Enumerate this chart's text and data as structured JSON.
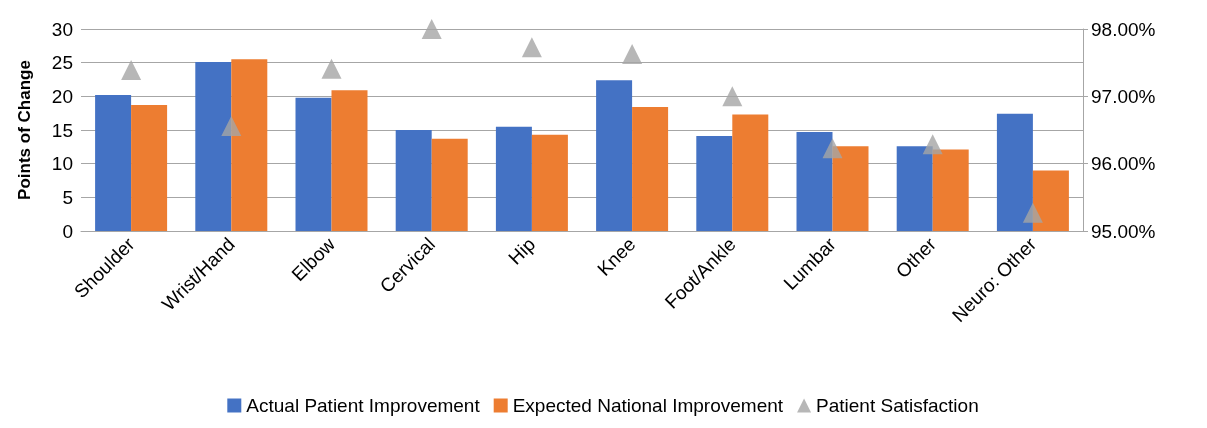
{
  "chart_data": {
    "type": "bar",
    "ylabel": "Points of Change",
    "categories": [
      "Shoulder",
      "Wrist/Hand",
      "Elbow",
      "Cervical",
      "Hip",
      "Knee",
      "Foot/Ankle",
      "Lumbar",
      "Other",
      "Neuro: Other"
    ],
    "series": [
      {
        "name": "Actual Patient Improvement",
        "color": "#4472c4",
        "values": [
          20.2,
          25.1,
          19.8,
          15,
          15.5,
          22.4,
          14.1,
          14.7,
          12.6,
          17.4
        ]
      },
      {
        "name": "Expected National Improvement",
        "color": "#ed7d31",
        "values": [
          18.7,
          25.5,
          20.9,
          13.7,
          14.3,
          18.4,
          17.3,
          12.6,
          12.1,
          9.0
        ]
      },
      {
        "name": "Patient Satisfaction",
        "type": "scatter",
        "axis": "y2",
        "marker": "triangle",
        "color": "#a5a5a5",
        "values": [
          97.39,
          96.56,
          97.41,
          98.0,
          97.73,
          97.63,
          97.0,
          96.23,
          96.29,
          95.27
        ]
      }
    ],
    "ylim": [
      0,
      30
    ],
    "yticks": [
      0,
      5,
      10,
      15,
      20,
      25,
      30
    ],
    "y2lim": [
      95,
      98
    ],
    "y2ticks": [
      {
        "value": 95,
        "label": "95.00%"
      },
      {
        "value": 96,
        "label": "96.00%"
      },
      {
        "value": 97,
        "label": "97.00%"
      },
      {
        "value": 98,
        "label": "98.00%"
      }
    ],
    "grid": "y",
    "legend": "bottom"
  }
}
